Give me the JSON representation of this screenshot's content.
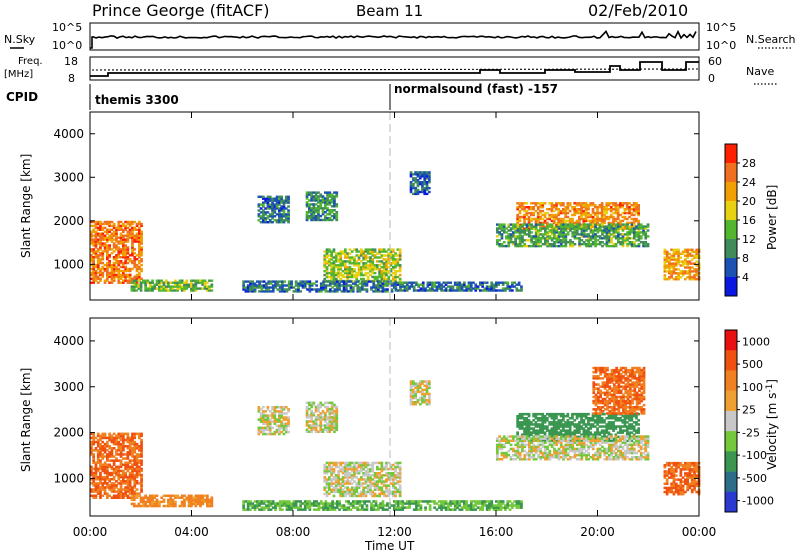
{
  "header": {
    "station": "Prince George (fitACF)",
    "beam": "Beam 11",
    "date": "02/Feb/2010"
  },
  "top_panels": {
    "nsky": {
      "left_label": "N.Sky",
      "left_ticks": [
        "10^5",
        "10^0"
      ],
      "right_ticks": [
        "10^5",
        "10^0"
      ],
      "right_label": "N.Search"
    },
    "freq": {
      "left_label_1": "Freq.",
      "left_label_2": "[MHz]",
      "left_ticks": [
        "18",
        "8"
      ],
      "right_ticks": [
        "60",
        "0"
      ],
      "right_label": "Nave"
    },
    "cpid": {
      "label": "CPID",
      "segments": [
        "themis 3300",
        "normalsound (fast) -157"
      ]
    }
  },
  "chart_data": [
    {
      "type": "heatmap",
      "title": "",
      "xlabel": "Time UT",
      "ylabel": "Slant Range [km]",
      "xlim": [
        0,
        24
      ],
      "ylim": [
        180,
        4500
      ],
      "x_tick_labels": [
        "00:00",
        "04:00",
        "08:00",
        "12:00",
        "16:00",
        "20:00",
        "00:00"
      ],
      "y_tick_labels": [
        "1000",
        "2000",
        "3000",
        "4000"
      ],
      "y_ticks": [
        1000,
        2000,
        3000,
        4000
      ],
      "colorbar": {
        "label": "Power [dB]",
        "tick_labels": [
          "4",
          "8",
          "12",
          "16",
          "20",
          "24",
          "28"
        ],
        "colors": [
          "#0a18e0",
          "#1c52b4",
          "#3f8c5a",
          "#52b72e",
          "#e8d012",
          "#f0a000",
          "#f07020",
          "#ff2000"
        ]
      },
      "echo_regions": [
        {
          "t": [
            0.0,
            2.0
          ],
          "r": [
            560,
            2000
          ],
          "power_db": 25
        },
        {
          "t": [
            1.6,
            4.8
          ],
          "r": [
            380,
            640
          ],
          "power_db": 14
        },
        {
          "t": [
            6.6,
            7.8
          ],
          "r": [
            1950,
            2550
          ],
          "power_db": 8
        },
        {
          "t": [
            8.5,
            9.7
          ],
          "r": [
            2000,
            2650
          ],
          "power_db": 11
        },
        {
          "t": [
            9.2,
            12.2
          ],
          "r": [
            600,
            1350
          ],
          "power_db": 16
        },
        {
          "t": [
            6.0,
            12.0
          ],
          "r": [
            360,
            600
          ],
          "power_db": 8
        },
        {
          "t": [
            12.0,
            17.0
          ],
          "r": [
            380,
            600
          ],
          "power_db": 8
        },
        {
          "t": [
            12.6,
            13.4
          ],
          "r": [
            2600,
            3100
          ],
          "power_db": 7
        },
        {
          "t": [
            16.8,
            21.6
          ],
          "r": [
            1800,
            2400
          ],
          "power_db": 24
        },
        {
          "t": [
            16.0,
            22.0
          ],
          "r": [
            1400,
            1900
          ],
          "power_db": 12
        },
        {
          "t": [
            22.6,
            24.0
          ],
          "r": [
            640,
            1350
          ],
          "power_db": 22
        }
      ]
    },
    {
      "type": "heatmap",
      "title": "",
      "xlabel": "Time UT",
      "ylabel": "Slant Range [km]",
      "xlim": [
        0,
        24
      ],
      "ylim": [
        180,
        4500
      ],
      "x_tick_labels": [
        "00:00",
        "04:00",
        "08:00",
        "12:00",
        "16:00",
        "20:00",
        "00:00"
      ],
      "y_tick_labels": [
        "1000",
        "2000",
        "3000",
        "4000"
      ],
      "y_ticks": [
        1000,
        2000,
        3000,
        4000
      ],
      "colorbar": {
        "label": "Velocity [m s^-1]",
        "tick_labels": [
          "1000",
          "500",
          "100",
          "25",
          "-25",
          "-100",
          "-500",
          "-1000"
        ],
        "colors": [
          "#2a3ad0",
          "#2c6e8a",
          "#3a9650",
          "#74c83c",
          "#c8c8c8",
          "#f0a030",
          "#f08020",
          "#f05010",
          "#e81010"
        ]
      },
      "echo_regions": [
        {
          "t": [
            0.0,
            2.0
          ],
          "r": [
            560,
            2000
          ],
          "velocity": -300
        },
        {
          "t": [
            1.6,
            4.8
          ],
          "r": [
            380,
            640
          ],
          "velocity": -80
        },
        {
          "t": [
            6.6,
            7.8
          ],
          "r": [
            1950,
            2550
          ],
          "velocity": 0
        },
        {
          "t": [
            8.5,
            9.7
          ],
          "r": [
            2000,
            2650
          ],
          "velocity": 0
        },
        {
          "t": [
            9.2,
            12.2
          ],
          "r": [
            600,
            1350
          ],
          "velocity": 0
        },
        {
          "t": [
            6.0,
            12.0
          ],
          "r": [
            300,
            520
          ],
          "velocity": 60
        },
        {
          "t": [
            12.0,
            17.0
          ],
          "r": [
            300,
            520
          ],
          "velocity": 60
        },
        {
          "t": [
            12.6,
            13.4
          ],
          "r": [
            2600,
            3100
          ],
          "velocity": 0
        },
        {
          "t": [
            16.8,
            21.6
          ],
          "r": [
            1800,
            2400
          ],
          "velocity": 150
        },
        {
          "t": [
            19.8,
            21.8
          ],
          "r": [
            2400,
            3400
          ],
          "velocity": -300
        },
        {
          "t": [
            16.0,
            22.0
          ],
          "r": [
            1400,
            1900
          ],
          "velocity": 0
        },
        {
          "t": [
            22.6,
            24.0
          ],
          "r": [
            640,
            1350
          ],
          "velocity": -300
        }
      ]
    }
  ]
}
